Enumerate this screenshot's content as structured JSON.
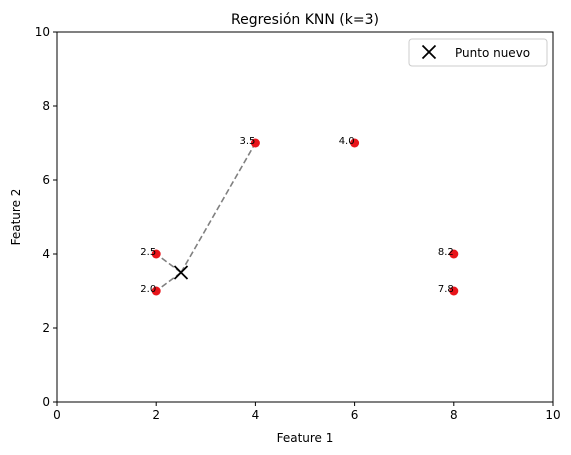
{
  "chart_data": {
    "type": "scatter",
    "title": "Regresión KNN (k=3)",
    "xlabel": "Feature 1",
    "ylabel": "Feature 2",
    "xlim": [
      0,
      10
    ],
    "ylim": [
      0,
      10
    ],
    "xticks": [
      "0",
      "2",
      "4",
      "6",
      "8",
      "10"
    ],
    "yticks": [
      "0",
      "2",
      "4",
      "6",
      "8",
      "10"
    ],
    "grid": false,
    "legend_position": "top-right",
    "points": [
      {
        "x": 2,
        "y": 4,
        "label": "2.5"
      },
      {
        "x": 2,
        "y": 3,
        "label": "2.0"
      },
      {
        "x": 4,
        "y": 7,
        "label": "3.5"
      },
      {
        "x": 6,
        "y": 7,
        "label": "4.0"
      },
      {
        "x": 8,
        "y": 4,
        "label": "8.2"
      },
      {
        "x": 8,
        "y": 3,
        "label": "7.8"
      }
    ],
    "new_point": {
      "x": 2.5,
      "y": 3.5,
      "name": "Punto nuevo"
    },
    "neighbors": [
      0,
      1,
      2
    ],
    "colors": {
      "points": "#e8141a",
      "new_point": "#000000",
      "neighbor_lines": "#808080"
    }
  }
}
